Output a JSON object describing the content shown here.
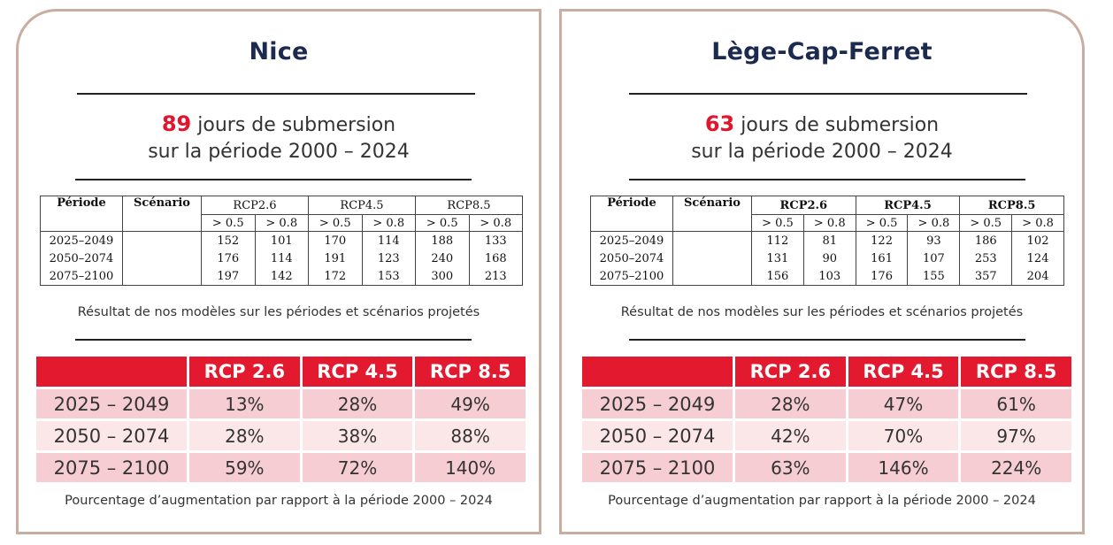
{
  "cards": [
    {
      "city": "Nice",
      "days": "89",
      "days_text": " jours de submersion",
      "period_text": "sur la période 2000 – 2024",
      "model_table": {
        "headers": [
          "Période",
          "Scénario",
          "RCP2.6",
          "RCP4.5",
          "RCP8.5"
        ],
        "sub_headers": [
          "> 0.5",
          "> 0.8",
          "> 0.5",
          "> 0.8",
          "> 0.5",
          "> 0.8"
        ],
        "rows": [
          {
            "period": "2025–2049",
            "scenario": "",
            "values": [
              "152",
              "101",
              "170",
              "114",
              "188",
              "133"
            ]
          },
          {
            "period": "2050–2074",
            "scenario": "",
            "values": [
              "176",
              "114",
              "191",
              "123",
              "240",
              "168"
            ]
          },
          {
            "period": "2075–2100",
            "scenario": "",
            "values": [
              "197",
              "142",
              "172",
              "153",
              "300",
              "213"
            ]
          }
        ]
      },
      "model_caption": "Résultat de nos modèles sur les périodes et scénarios projetés",
      "pct_table": {
        "headers": [
          "",
          "RCP 2.6",
          "RCP 4.5",
          "RCP 8.5"
        ],
        "rows": [
          {
            "period": "2025 – 2049",
            "values": [
              "13%",
              "28%",
              "49%"
            ]
          },
          {
            "period": "2050 – 2074",
            "values": [
              "28%",
              "38%",
              "88%"
            ]
          },
          {
            "period": "2075 – 2100",
            "values": [
              "59%",
              "72%",
              "140%"
            ]
          }
        ]
      },
      "pct_caption": "Pourcentage d’augmentation par rapport à la période 2000 – 2024"
    },
    {
      "city": "Lège-Cap-Ferret",
      "days": "63",
      "days_text": " jours de submersion",
      "period_text": "sur la période 2000 – 2024",
      "model_table": {
        "headers": [
          "Période",
          "Scénario",
          "RCP2.6",
          "RCP4.5",
          "RCP8.5"
        ],
        "sub_headers": [
          "> 0.5",
          "> 0.8",
          "> 0.5",
          "> 0.8",
          "> 0.5",
          "> 0.8"
        ],
        "rows": [
          {
            "period": "2025–2049",
            "scenario": "",
            "values": [
              "112",
              "81",
              "122",
              "93",
              "186",
              "102"
            ]
          },
          {
            "period": "2050–2074",
            "scenario": "",
            "values": [
              "131",
              "90",
              "161",
              "107",
              "253",
              "124"
            ]
          },
          {
            "period": "2075–2100",
            "scenario": "",
            "values": [
              "156",
              "103",
              "176",
              "155",
              "357",
              "204"
            ]
          }
        ]
      },
      "model_caption": "Résultat de nos modèles sur les périodes et scénarios projetés",
      "pct_table": {
        "headers": [
          "",
          "RCP 2.6",
          "RCP 4.5",
          "RCP 8.5"
        ],
        "rows": [
          {
            "period": "2025 – 2049",
            "values": [
              "28%",
              "47%",
              "61%"
            ]
          },
          {
            "period": "2050 – 2074",
            "values": [
              "42%",
              "70%",
              "97%"
            ]
          },
          {
            "period": "2075 – 2100",
            "values": [
              "63%",
              "146%",
              "224%"
            ]
          }
        ]
      },
      "pct_caption": "Pourcentage d’augmentation par rapport à la période 2000 – 2024"
    }
  ],
  "colors": {
    "accent_red": "#e2192f",
    "title_navy": "#1b2a4e",
    "card_border": "#c9ada1",
    "row_light": "#fbe6e8",
    "row_dark": "#f5cdd2"
  }
}
